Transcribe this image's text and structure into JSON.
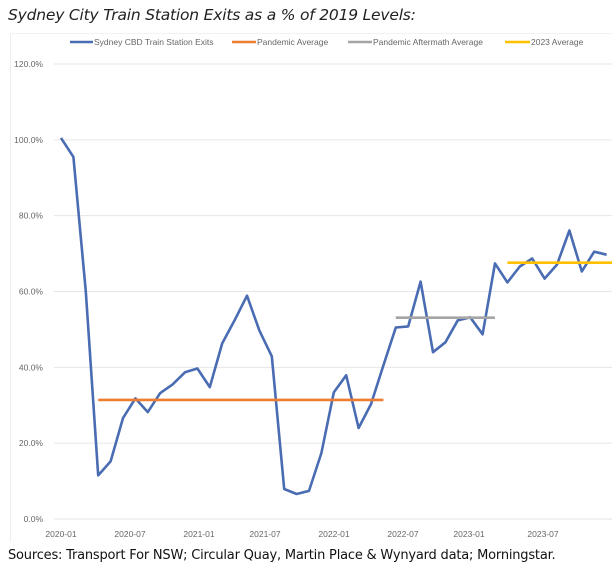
{
  "title": "Sydney City Train Station Exits as a % of 2019 Levels:",
  "source": "Sources: Transport For NSW; Circular Quay, Martin Place & Wynyard data; Morningstar.",
  "chart_data": {
    "type": "line",
    "title": "Sydney City Train Station Exits as a % of 2019 Levels:",
    "xlabel": "",
    "ylabel": "",
    "ylim": [
      0,
      120
    ],
    "yticks": [
      0,
      20,
      40,
      60,
      80,
      100,
      120
    ],
    "ytick_labels": [
      "0.0%",
      "20.0%",
      "40.0%",
      "60.0%",
      "80.0%",
      "100.0%",
      "120.0%"
    ],
    "xtick_labels": [
      "2020-01",
      "2020-07",
      "2021-01",
      "2021-07",
      "2022-01",
      "2022-07",
      "2023-01",
      "2023-07"
    ],
    "grid": true,
    "legend_position": "top",
    "x_start": "2020-01",
    "x_step": "month",
    "series": [
      {
        "name": "Sydney CBD Train Station Exits",
        "color": "#4a6cb3",
        "values": [
          100.5,
          95.5,
          60.0,
          11.5,
          15.2,
          26.6,
          31.8,
          28.2,
          33.2,
          35.5,
          38.7,
          39.7,
          34.8,
          46.3,
          52.4,
          58.9,
          49.7,
          42.9,
          7.9,
          6.6,
          7.4,
          17.4,
          33.4,
          37.9,
          24.0,
          30.3,
          40.5,
          50.5,
          50.8,
          62.6,
          44.0,
          46.6,
          52.4,
          53.2,
          48.7,
          67.4,
          62.4,
          66.6,
          68.7,
          63.4,
          67.1,
          76.1,
          65.3,
          70.5,
          69.7
        ]
      },
      {
        "name": "Pandemic Average",
        "color": "#ed7d31",
        "value": 31.4,
        "x_range_index": [
          3,
          26
        ]
      },
      {
        "name": "Pandemic Aftermath Average",
        "color": "#a5a5a5",
        "value": 53.1,
        "x_range_index": [
          27,
          35
        ]
      },
      {
        "name": "2023 Average",
        "color": "#ffc000",
        "value": 67.6,
        "x_range_index": [
          36,
          44
        ]
      }
    ]
  }
}
